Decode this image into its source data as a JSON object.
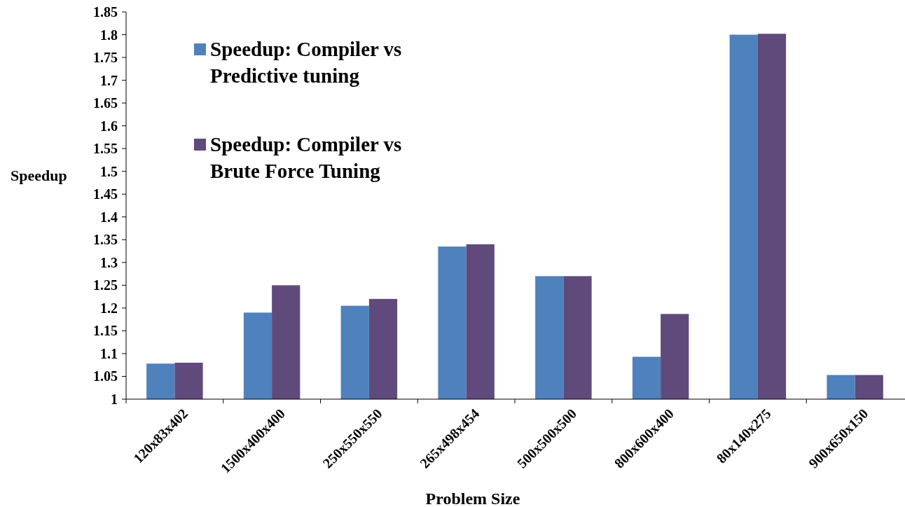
{
  "chart_data": {
    "type": "bar",
    "xlabel": "Problem Size",
    "ylabel": "Speedup",
    "categories": [
      "120x83x402",
      "1500x400x400",
      "250x550x550",
      "265x498x454",
      "500x500x500",
      "800x600x400",
      "80x140x275",
      "900x650x150"
    ],
    "series": [
      {
        "name": "Speedup: Compiler vs Predictive tuning",
        "color": "#4f81bd",
        "values": [
          1.078,
          1.19,
          1.205,
          1.335,
          1.27,
          1.093,
          1.8,
          1.053
        ]
      },
      {
        "name": "Speedup: Compiler vs Brute Force Tuning",
        "color": "#604a7b",
        "values": [
          1.08,
          1.25,
          1.22,
          1.34,
          1.27,
          1.187,
          1.802,
          1.053
        ]
      }
    ],
    "ylim": [
      1,
      1.85
    ],
    "yticks": [
      1,
      1.05,
      1.1,
      1.15,
      1.2,
      1.25,
      1.3,
      1.35,
      1.4,
      1.45,
      1.5,
      1.55,
      1.6,
      1.65,
      1.7,
      1.75,
      1.8,
      1.85
    ],
    "grid": false,
    "legend": "top left"
  }
}
